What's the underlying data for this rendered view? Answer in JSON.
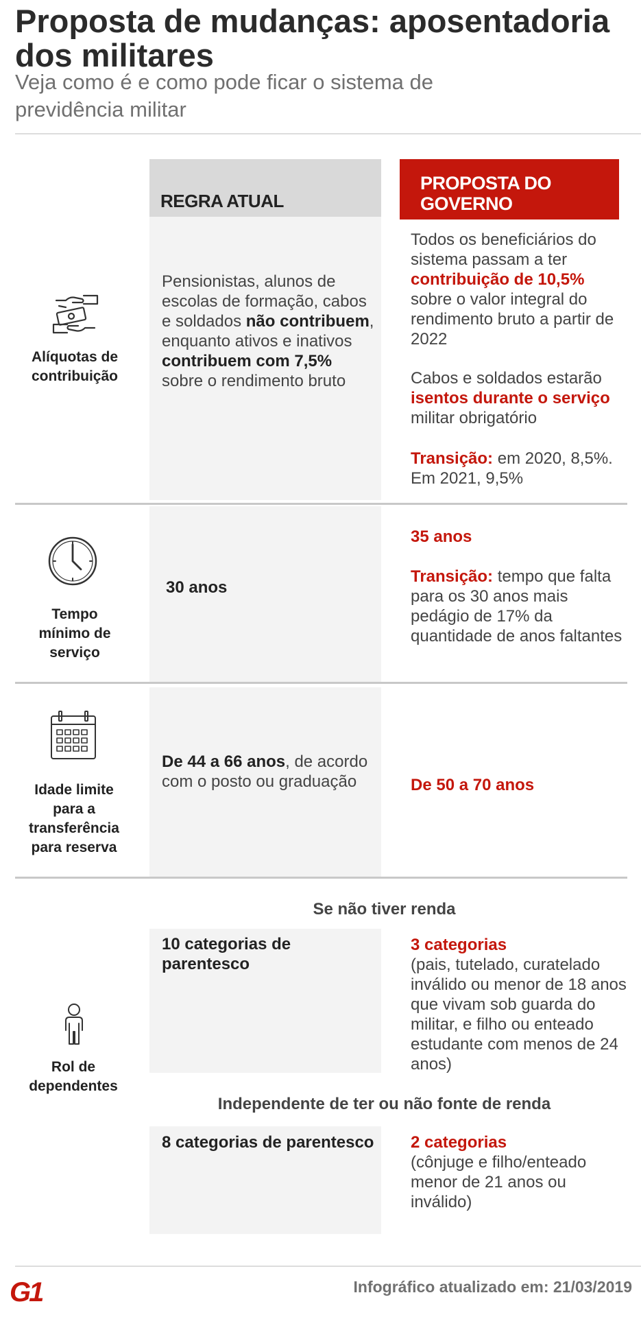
{
  "header": {
    "title": "Proposta de mudanças: aposentadoria dos militares",
    "subtitle": "Veja como é e como pode ficar o sistema de previdência militar"
  },
  "columns": {
    "current": "REGRA ATUAL",
    "proposal": "PROPOSTA DO GOVERNO"
  },
  "rows": {
    "aliquotas": {
      "label": "Alíquotas de contribuição",
      "icon": "money-hands-icon",
      "current": {
        "t1": "Pensionistas, alunos de escolas de formação, cabos e soldados ",
        "b1": "não contribuem",
        "t2": ", enquanto ativos e inativos ",
        "b2": "contribuem com 7,5%",
        "t3": " sobre o rendimento bruto"
      },
      "proposal": {
        "p1a": "Todos os beneficiários do sistema passam a ter ",
        "p1b": "contribuição de 10,5%",
        "p1c": " sobre o valor integral do rendimento bruto a partir de 2022",
        "p2a": "Cabos e soldados estarão ",
        "p2b": "isentos durante o serviço",
        "p2c": " militar obrigatório",
        "p3a": "Transição:",
        "p3b": " em 2020, 8,5%. Em 2021, 9,5%"
      }
    },
    "tempo": {
      "label": "Tempo mínimo de serviço",
      "icon": "clock-icon",
      "current": "30 anos",
      "proposal": {
        "value": "35 anos",
        "ta": "Transição:",
        "tb": " tempo que falta para os 30 anos mais pedágio de 17% da quantidade de anos faltantes"
      }
    },
    "idade": {
      "label": "Idade limite para a transferência para reserva",
      "icon": "calendar-icon",
      "current": {
        "b": "De 44 a 66 anos",
        "t": ", de acordo com o posto ou graduação"
      },
      "proposal": "De 50 a 70 anos"
    },
    "dependentes": {
      "label": "Rol de dependentes",
      "icon": "person-icon",
      "head1": "Se não tiver renda",
      "current1": "10 categorias de parentesco",
      "proposal1": {
        "value": "3 categorias",
        "text": "(pais, tutelado, curatelado inválido ou menor de 18 anos que vivam sob guarda do militar, e filho ou enteado estudante com menos de 24 anos)"
      },
      "head2": "Independente de ter ou não fonte de renda",
      "current2": "8 categorias de parentesco",
      "proposal2": {
        "value": "2 categorias",
        "text": "(cônjuge e filho/enteado menor de 21 anos ou inválido)"
      }
    }
  },
  "footer": {
    "logo": "G1",
    "updated": "Infográfico atualizado em: 21/03/2019"
  },
  "colors": {
    "accent": "#c4170c",
    "header_gray": "#d9d9d9",
    "column_gray": "#f3f3f3"
  }
}
